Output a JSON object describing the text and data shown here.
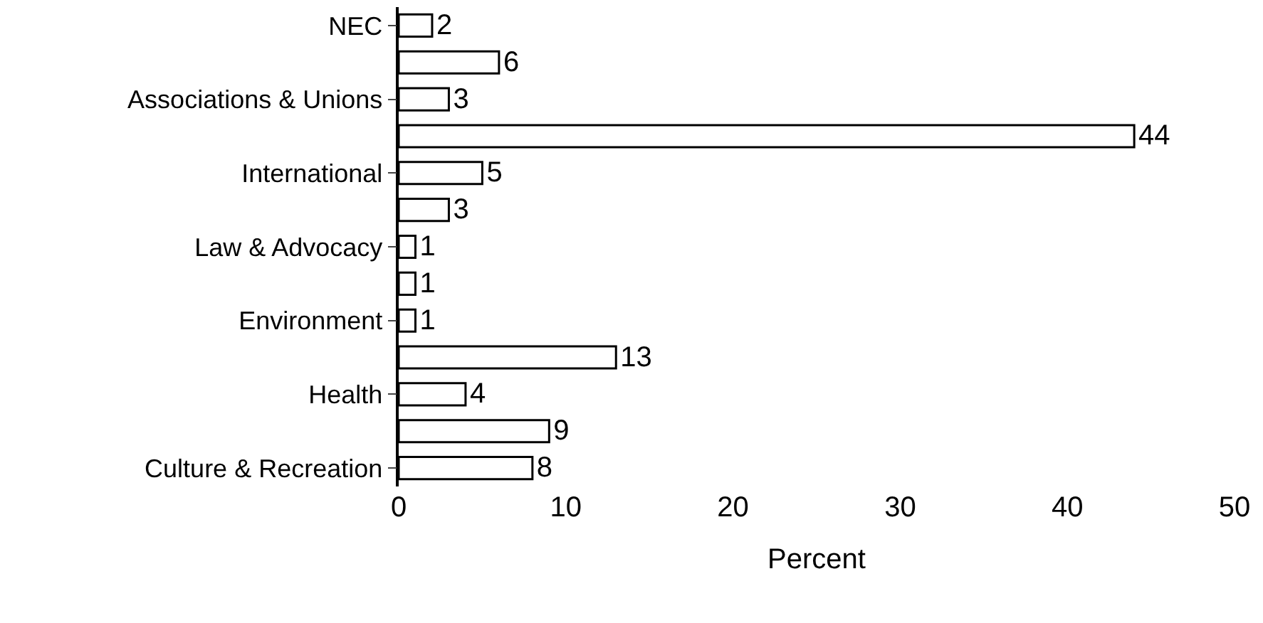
{
  "chart_data": {
    "type": "bar",
    "orientation": "horizontal",
    "xlabel": "Percent",
    "categories": [
      "NEC",
      null,
      "Associations & Unions",
      null,
      "International",
      null,
      "Law & Advocacy",
      null,
      "Environment",
      null,
      "Health",
      null,
      "Culture & Recreation"
    ],
    "values": [
      2,
      6,
      3,
      44,
      5,
      3,
      1,
      1,
      1,
      13,
      4,
      9,
      8
    ],
    "color": "#ffffff",
    "xlim": [
      0,
      50
    ],
    "xticks": [
      0,
      10,
      20,
      30,
      40,
      50
    ],
    "data_labels": true,
    "grid": false
  }
}
